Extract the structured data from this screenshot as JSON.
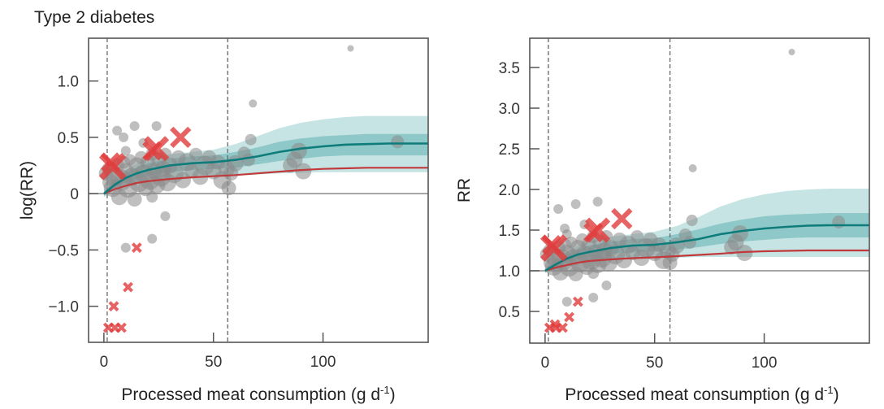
{
  "figure_title": "Type 2 diabetes",
  "chart_data": [
    {
      "type": "scatter",
      "panel": "left",
      "title": "Type 2 diabetes",
      "xlabel": "Processed meat consumption (g d",
      "xlabel_sup": "-1",
      "xlabel_close": ")",
      "ylabel": "log(RR)",
      "xlim": [
        -7,
        148
      ],
      "ylim": [
        -1.32,
        1.38
      ],
      "xticks": [
        0,
        50,
        100
      ],
      "xtick_labels": [
        "0",
        "50",
        "100"
      ],
      "yticks": [
        -1.0,
        -0.5,
        0,
        0.5,
        1.0
      ],
      "ytick_labels": [
        "−1.0",
        "−0.5",
        "0",
        "0.5",
        "1.0"
      ],
      "reference_line": 0,
      "vlines": [
        1.5,
        56.5
      ],
      "curve_x": [
        0,
        5,
        10,
        15,
        20,
        30,
        40,
        50,
        60,
        70,
        80,
        90,
        100,
        110,
        120,
        130,
        148
      ],
      "mean_curve": [
        0.0,
        0.08,
        0.14,
        0.18,
        0.21,
        0.25,
        0.27,
        0.28,
        0.3,
        0.33,
        0.37,
        0.4,
        0.42,
        0.435,
        0.44,
        0.445,
        0.445
      ],
      "inner_upper": [
        0.02,
        0.11,
        0.18,
        0.23,
        0.27,
        0.31,
        0.33,
        0.34,
        0.37,
        0.41,
        0.46,
        0.49,
        0.51,
        0.52,
        0.53,
        0.53,
        0.53
      ],
      "inner_lower": [
        -0.02,
        0.05,
        0.1,
        0.13,
        0.16,
        0.19,
        0.21,
        0.22,
        0.23,
        0.26,
        0.29,
        0.31,
        0.33,
        0.34,
        0.34,
        0.34,
        0.34
      ],
      "outer_upper": [
        0.03,
        0.13,
        0.21,
        0.27,
        0.31,
        0.35,
        0.37,
        0.39,
        0.44,
        0.51,
        0.58,
        0.63,
        0.66,
        0.68,
        0.69,
        0.69,
        0.69
      ],
      "outer_lower": [
        -0.03,
        0.03,
        0.07,
        0.1,
        0.12,
        0.14,
        0.15,
        0.15,
        0.16,
        0.17,
        0.18,
        0.185,
        0.19,
        0.19,
        0.19,
        0.19,
        0.19
      ],
      "alt_curve": [
        0.0,
        0.04,
        0.07,
        0.095,
        0.11,
        0.13,
        0.145,
        0.155,
        0.165,
        0.18,
        0.195,
        0.21,
        0.22,
        0.225,
        0.23,
        0.23,
        0.23
      ],
      "points": [
        {
          "x": 1,
          "y": 0.18,
          "s": 9
        },
        {
          "x": 2,
          "y": 0.22,
          "s": 8
        },
        {
          "x": 3,
          "y": 0.1,
          "s": 10
        },
        {
          "x": 4,
          "y": 0.05,
          "s": 11
        },
        {
          "x": 5,
          "y": 0.15,
          "s": 12
        },
        {
          "x": 6,
          "y": 0.25,
          "s": 9
        },
        {
          "x": 7,
          "y": -0.03,
          "s": 10
        },
        {
          "x": 8,
          "y": 0.12,
          "s": 13
        },
        {
          "x": 9,
          "y": 0.28,
          "s": 8
        },
        {
          "x": 10,
          "y": 0.2,
          "s": 10
        },
        {
          "x": 11,
          "y": 0.05,
          "s": 12
        },
        {
          "x": 12,
          "y": 0.3,
          "s": 7
        },
        {
          "x": 13,
          "y": 0.15,
          "s": 11
        },
        {
          "x": 14,
          "y": -0.05,
          "s": 9
        },
        {
          "x": 15,
          "y": 0.25,
          "s": 10
        },
        {
          "x": 16,
          "y": 0.1,
          "s": 12
        },
        {
          "x": 17,
          "y": 0.32,
          "s": 8
        },
        {
          "x": 18,
          "y": 0.18,
          "s": 11
        },
        {
          "x": 19,
          "y": 0.05,
          "s": 10
        },
        {
          "x": 20,
          "y": 0.28,
          "s": 9
        },
        {
          "x": 21,
          "y": 0.12,
          "s": 12
        },
        {
          "x": 22,
          "y": 0.35,
          "s": 8
        },
        {
          "x": 23,
          "y": 0.2,
          "s": 10
        },
        {
          "x": 24,
          "y": 0.08,
          "s": 11
        },
        {
          "x": 25,
          "y": 0.3,
          "s": 9
        },
        {
          "x": 26,
          "y": 0.15,
          "s": 12
        },
        {
          "x": 27,
          "y": 0.22,
          "s": 10
        },
        {
          "x": 28,
          "y": 0.35,
          "s": 8
        },
        {
          "x": 29,
          "y": 0.1,
          "s": 11
        },
        {
          "x": 30,
          "y": 0.25,
          "s": 10
        },
        {
          "x": 32,
          "y": 0.18,
          "s": 12
        },
        {
          "x": 34,
          "y": 0.32,
          "s": 9
        },
        {
          "x": 36,
          "y": 0.12,
          "s": 10
        },
        {
          "x": 38,
          "y": 0.28,
          "s": 11
        },
        {
          "x": 40,
          "y": 0.2,
          "s": 9
        },
        {
          "x": 42,
          "y": 0.35,
          "s": 8
        },
        {
          "x": 44,
          "y": 0.15,
          "s": 10
        },
        {
          "x": 46,
          "y": 0.25,
          "s": 12
        },
        {
          "x": 48,
          "y": 0.32,
          "s": 9
        },
        {
          "x": 50,
          "y": 0.2,
          "s": 10
        },
        {
          "x": 52,
          "y": 0.28,
          "s": 9
        },
        {
          "x": 54,
          "y": 0.12,
          "s": 11
        },
        {
          "x": 56,
          "y": 0.22,
          "s": 10
        },
        {
          "x": 57,
          "y": 0.05,
          "s": 9
        },
        {
          "x": 58,
          "y": 0.18,
          "s": 9
        },
        {
          "x": 60,
          "y": 0.27,
          "s": 10
        },
        {
          "x": 64,
          "y": 0.36,
          "s": 8
        },
        {
          "x": 66,
          "y": 0.3,
          "s": 8
        },
        {
          "x": 67,
          "y": 0.48,
          "s": 7
        },
        {
          "x": 68,
          "y": 0.8,
          "s": 5
        },
        {
          "x": 85,
          "y": 0.25,
          "s": 9
        },
        {
          "x": 87,
          "y": 0.3,
          "s": 10
        },
        {
          "x": 89,
          "y": 0.38,
          "s": 10
        },
        {
          "x": 91,
          "y": 0.2,
          "s": 10
        },
        {
          "x": 134,
          "y": 0.46,
          "s": 8
        },
        {
          "x": 112.6,
          "y": 1.29,
          "s": 4
        },
        {
          "x": 6,
          "y": 0.56,
          "s": 6
        },
        {
          "x": 14,
          "y": 0.6,
          "s": 6
        },
        {
          "x": 24,
          "y": 0.6,
          "s": 6
        },
        {
          "x": 9,
          "y": 0.5,
          "s": 6
        },
        {
          "x": 10,
          "y": 0.38,
          "s": 6
        },
        {
          "x": 18,
          "y": 0.45,
          "s": 6
        },
        {
          "x": 28,
          "y": -0.2,
          "s": 6
        },
        {
          "x": 10,
          "y": -0.48,
          "s": 6
        },
        {
          "x": 22,
          "y": -0.4,
          "s": 6
        },
        {
          "x": 22,
          "y": -0.03,
          "s": 7
        }
      ],
      "crosses": [
        {
          "x": 4,
          "y": 0.24,
          "s": 14
        },
        {
          "x": 3,
          "y": 0.28,
          "s": 10
        },
        {
          "x": 24,
          "y": 0.4,
          "s": 13
        },
        {
          "x": 22,
          "y": 0.38,
          "s": 10
        },
        {
          "x": 35,
          "y": 0.5,
          "s": 11
        },
        {
          "x": 15,
          "y": -0.48,
          "s": 5
        },
        {
          "x": 11,
          "y": -0.83,
          "s": 5
        },
        {
          "x": 4.5,
          "y": -1.0,
          "s": 5
        },
        {
          "x": 2,
          "y": -1.19,
          "s": 5
        },
        {
          "x": 5,
          "y": -1.19,
          "s": 5
        },
        {
          "x": 8,
          "y": -1.19,
          "s": 5
        }
      ]
    },
    {
      "type": "scatter",
      "panel": "right",
      "title": "",
      "xlabel": "Processed meat consumption (g d",
      "xlabel_sup": "-1",
      "xlabel_close": ")",
      "ylabel": "RR",
      "xlim": [
        -7,
        148
      ],
      "ylim": [
        0.11,
        3.86
      ],
      "xticks": [
        0,
        50,
        100
      ],
      "xtick_labels": [
        "0",
        "50",
        "100"
      ],
      "yticks": [
        0.5,
        1.0,
        1.5,
        2.0,
        2.5,
        3.0,
        3.5
      ],
      "ytick_labels": [
        "0.5",
        "1.0",
        "1.5",
        "2.0",
        "2.5",
        "3.0",
        "3.5"
      ],
      "reference_line": 1.0,
      "vlines": [
        1.5,
        57
      ],
      "curve_x": [
        0,
        5,
        10,
        15,
        20,
        30,
        40,
        50,
        60,
        70,
        80,
        90,
        100,
        110,
        120,
        130,
        148
      ],
      "mean_curve": [
        1.0,
        1.08,
        1.15,
        1.2,
        1.23,
        1.28,
        1.31,
        1.32,
        1.35,
        1.39,
        1.45,
        1.49,
        1.52,
        1.54,
        1.555,
        1.56,
        1.56
      ],
      "inner_upper": [
        1.02,
        1.12,
        1.2,
        1.26,
        1.31,
        1.36,
        1.39,
        1.4,
        1.45,
        1.51,
        1.58,
        1.63,
        1.67,
        1.69,
        1.7,
        1.71,
        1.71
      ],
      "inner_lower": [
        0.98,
        1.05,
        1.1,
        1.14,
        1.17,
        1.21,
        1.23,
        1.24,
        1.26,
        1.29,
        1.33,
        1.36,
        1.38,
        1.4,
        1.41,
        1.41,
        1.41
      ],
      "outer_upper": [
        1.03,
        1.14,
        1.24,
        1.31,
        1.36,
        1.42,
        1.45,
        1.48,
        1.55,
        1.66,
        1.79,
        1.88,
        1.94,
        1.98,
        2.0,
        2.01,
        2.01
      ],
      "outer_lower": [
        0.97,
        1.03,
        1.07,
        1.1,
        1.12,
        1.14,
        1.15,
        1.16,
        1.16,
        1.17,
        1.17,
        1.17,
        1.17,
        1.17,
        1.17,
        1.17,
        1.17
      ],
      "alt_curve": [
        1.0,
        1.04,
        1.07,
        1.1,
        1.12,
        1.14,
        1.155,
        1.165,
        1.18,
        1.195,
        1.21,
        1.23,
        1.24,
        1.245,
        1.25,
        1.25,
        1.25
      ],
      "points": [
        {
          "x": 1,
          "y": 1.2,
          "s": 9
        },
        {
          "x": 2,
          "y": 1.25,
          "s": 8
        },
        {
          "x": 3,
          "y": 1.1,
          "s": 10
        },
        {
          "x": 4,
          "y": 1.05,
          "s": 11
        },
        {
          "x": 5,
          "y": 1.16,
          "s": 12
        },
        {
          "x": 6,
          "y": 1.28,
          "s": 9
        },
        {
          "x": 7,
          "y": 0.98,
          "s": 10
        },
        {
          "x": 8,
          "y": 1.13,
          "s": 13
        },
        {
          "x": 9,
          "y": 1.32,
          "s": 8
        },
        {
          "x": 10,
          "y": 1.22,
          "s": 10
        },
        {
          "x": 11,
          "y": 1.05,
          "s": 12
        },
        {
          "x": 12,
          "y": 1.35,
          "s": 7
        },
        {
          "x": 13,
          "y": 1.16,
          "s": 11
        },
        {
          "x": 14,
          "y": 0.96,
          "s": 9
        },
        {
          "x": 15,
          "y": 1.28,
          "s": 10
        },
        {
          "x": 16,
          "y": 1.1,
          "s": 12
        },
        {
          "x": 17,
          "y": 1.38,
          "s": 8
        },
        {
          "x": 18,
          "y": 1.2,
          "s": 11
        },
        {
          "x": 19,
          "y": 1.05,
          "s": 10
        },
        {
          "x": 20,
          "y": 1.32,
          "s": 9
        },
        {
          "x": 21,
          "y": 1.13,
          "s": 12
        },
        {
          "x": 22,
          "y": 1.42,
          "s": 8
        },
        {
          "x": 23,
          "y": 1.22,
          "s": 10
        },
        {
          "x": 24,
          "y": 1.08,
          "s": 11
        },
        {
          "x": 25,
          "y": 1.35,
          "s": 9
        },
        {
          "x": 26,
          "y": 1.16,
          "s": 12
        },
        {
          "x": 27,
          "y": 1.25,
          "s": 10
        },
        {
          "x": 28,
          "y": 1.42,
          "s": 8
        },
        {
          "x": 29,
          "y": 1.1,
          "s": 11
        },
        {
          "x": 30,
          "y": 1.28,
          "s": 10
        },
        {
          "x": 32,
          "y": 1.2,
          "s": 12
        },
        {
          "x": 34,
          "y": 1.38,
          "s": 9
        },
        {
          "x": 36,
          "y": 1.13,
          "s": 10
        },
        {
          "x": 38,
          "y": 1.32,
          "s": 11
        },
        {
          "x": 40,
          "y": 1.22,
          "s": 9
        },
        {
          "x": 42,
          "y": 1.42,
          "s": 8
        },
        {
          "x": 44,
          "y": 1.16,
          "s": 10
        },
        {
          "x": 46,
          "y": 1.28,
          "s": 12
        },
        {
          "x": 48,
          "y": 1.38,
          "s": 9
        },
        {
          "x": 50,
          "y": 1.22,
          "s": 10
        },
        {
          "x": 52,
          "y": 1.32,
          "s": 9
        },
        {
          "x": 54,
          "y": 1.13,
          "s": 11
        },
        {
          "x": 56,
          "y": 1.25,
          "s": 10
        },
        {
          "x": 57,
          "y": 1.1,
          "s": 9
        },
        {
          "x": 58,
          "y": 1.2,
          "s": 9
        },
        {
          "x": 60,
          "y": 1.31,
          "s": 10
        },
        {
          "x": 64,
          "y": 1.44,
          "s": 8
        },
        {
          "x": 66,
          "y": 1.35,
          "s": 8
        },
        {
          "x": 67,
          "y": 1.62,
          "s": 7
        },
        {
          "x": 67.4,
          "y": 2.26,
          "s": 5
        },
        {
          "x": 85,
          "y": 1.29,
          "s": 9
        },
        {
          "x": 87,
          "y": 1.35,
          "s": 10
        },
        {
          "x": 89,
          "y": 1.46,
          "s": 10
        },
        {
          "x": 91,
          "y": 1.22,
          "s": 10
        },
        {
          "x": 134,
          "y": 1.6,
          "s": 8
        },
        {
          "x": 112.6,
          "y": 3.69,
          "s": 4
        },
        {
          "x": 6,
          "y": 1.76,
          "s": 6
        },
        {
          "x": 14,
          "y": 1.82,
          "s": 6
        },
        {
          "x": 24,
          "y": 1.85,
          "s": 6
        },
        {
          "x": 9,
          "y": 1.52,
          "s": 6
        },
        {
          "x": 10,
          "y": 1.45,
          "s": 6
        },
        {
          "x": 18,
          "y": 1.57,
          "s": 6
        },
        {
          "x": 28,
          "y": 0.82,
          "s": 6
        },
        {
          "x": 10,
          "y": 0.62,
          "s": 6
        },
        {
          "x": 22,
          "y": 0.67,
          "s": 6
        },
        {
          "x": 22,
          "y": 0.97,
          "s": 7
        }
      ],
      "crosses": [
        {
          "x": 4,
          "y": 1.28,
          "s": 14
        },
        {
          "x": 3,
          "y": 1.32,
          "s": 10
        },
        {
          "x": 24,
          "y": 1.5,
          "s": 13
        },
        {
          "x": 22,
          "y": 1.47,
          "s": 10
        },
        {
          "x": 35,
          "y": 1.64,
          "s": 11
        },
        {
          "x": 15,
          "y": 0.62,
          "s": 5
        },
        {
          "x": 11,
          "y": 0.43,
          "s": 5
        },
        {
          "x": 4.5,
          "y": 0.34,
          "s": 5
        },
        {
          "x": 2,
          "y": 0.3,
          "s": 5
        },
        {
          "x": 5,
          "y": 0.3,
          "s": 5
        },
        {
          "x": 8,
          "y": 0.3,
          "s": 5
        }
      ]
    }
  ],
  "colors": {
    "mean_curve": "#0e7c7b",
    "alt_curve": "#c0393b",
    "inner_band": "#8fc8c8",
    "outer_band": "#c6e4e4",
    "points": "#8a8a8a",
    "crosses": "#e23b3b",
    "axis": "#555555",
    "reference_line": "#888888",
    "vline": "#666666"
  }
}
